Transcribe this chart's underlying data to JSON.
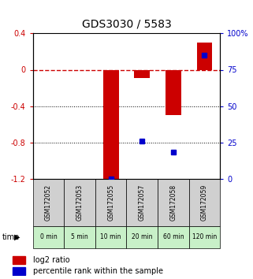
{
  "title": "GDS3030 / 5583",
  "samples": [
    "GSM172052",
    "GSM172053",
    "GSM172055",
    "GSM172057",
    "GSM172058",
    "GSM172059"
  ],
  "time_labels": [
    "0 min",
    "5 min",
    "10 min",
    "20 min",
    "60 min",
    "120 min"
  ],
  "log2_ratios": [
    0.0,
    0.0,
    -1.25,
    -0.09,
    -0.5,
    0.3
  ],
  "percentile_ranks": [
    null,
    null,
    0.0,
    26.0,
    18.0,
    85.0
  ],
  "ylim_left": [
    -1.2,
    0.4
  ],
  "ylim_right": [
    0,
    100
  ],
  "bar_color": "#cc0000",
  "dot_color": "#0000cc",
  "dashed_line_color": "#cc0000",
  "grid_color": "#000000",
  "bg_color": "#ffffff",
  "plot_bg": "#ffffff",
  "time_bg_light": "#c8f0c8",
  "time_bg_dark": "#a0e0a0",
  "sample_bg": "#d0d0d0",
  "bar_width": 0.5
}
